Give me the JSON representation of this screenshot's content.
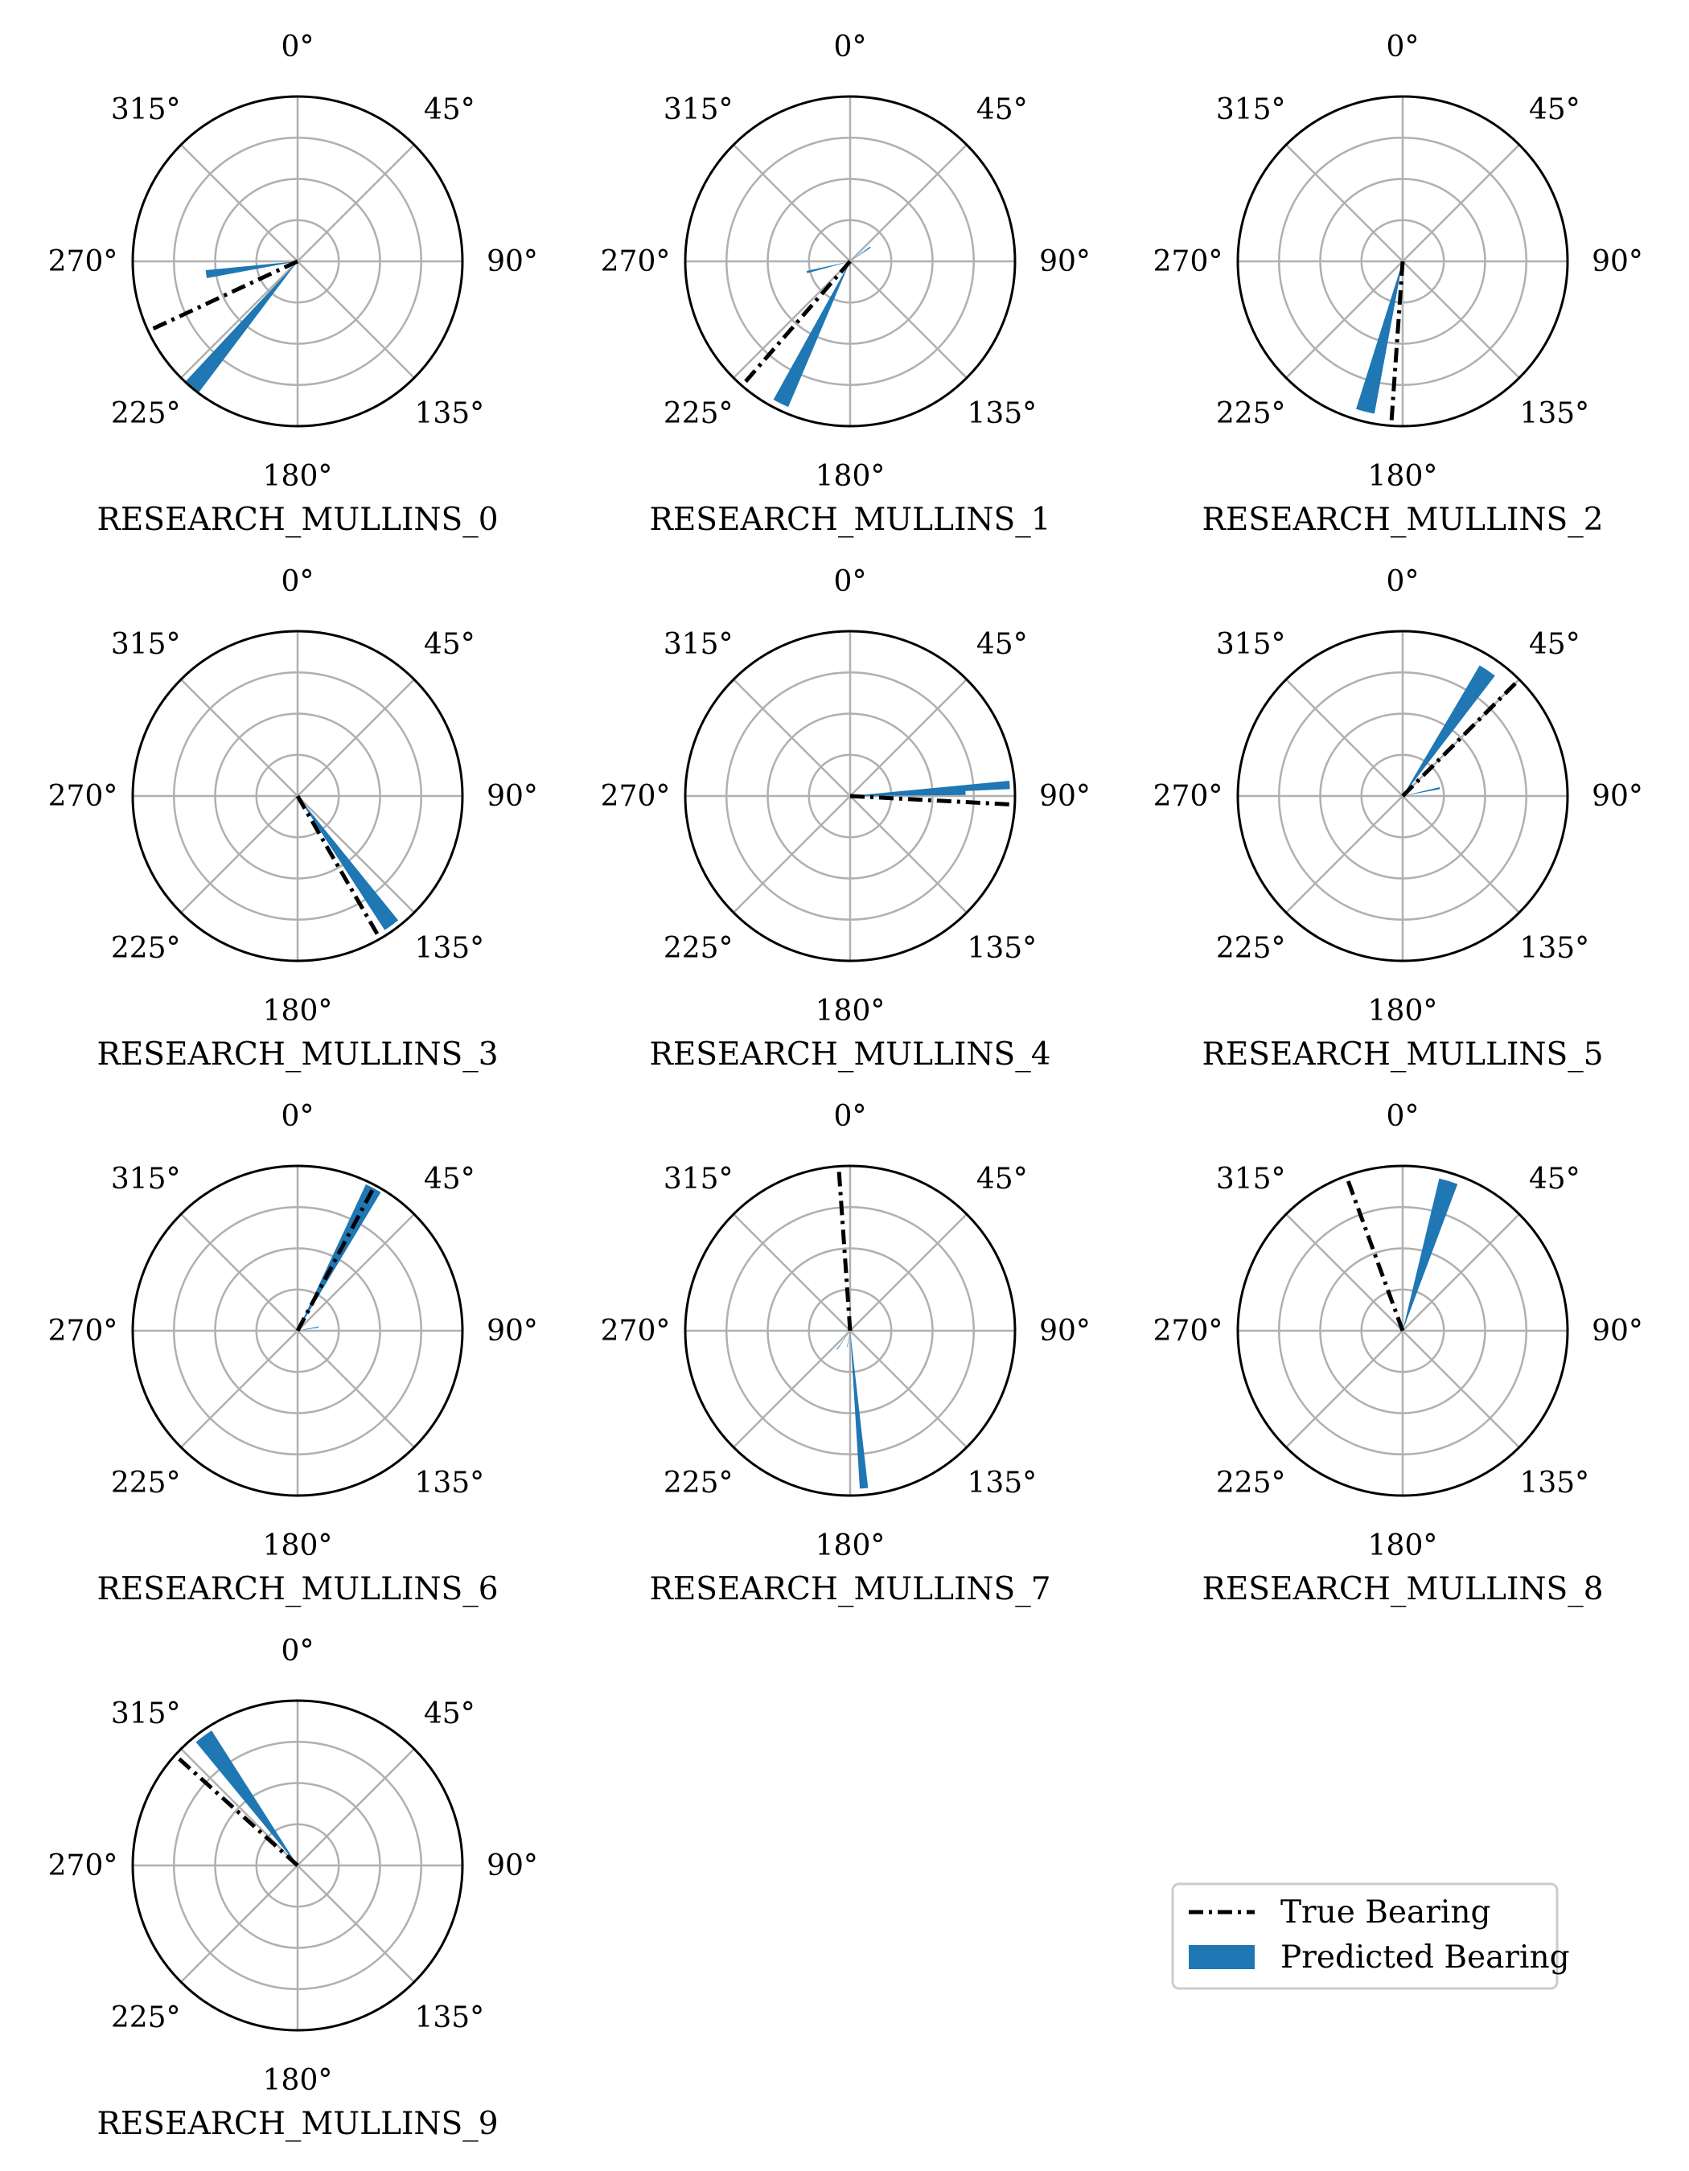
{
  "colors": {
    "predicted": "#1f77b4",
    "true_line": "#000000",
    "grid": "#b0b0b0",
    "frame": "#000000"
  },
  "legend": {
    "placement": "lower-right",
    "items": [
      {
        "label": "True Bearing",
        "style": "dash-dot-line"
      },
      {
        "label": "Predicted Bearing",
        "style": "filled-patch"
      }
    ]
  },
  "chart_data": [
    {
      "type": "polar",
      "title": "RESEARCH_MULLINS_0",
      "theta_labels": [
        "0°",
        "45°",
        "90°",
        "135°",
        "180°",
        "225°",
        "270°",
        "315°"
      ],
      "theta_zero": "N",
      "theta_direction": "clockwise",
      "grid": true,
      "true_bearing": 245,
      "predicted_bars": [
        {
          "theta": 220,
          "r": 1.0,
          "width": 6
        },
        {
          "theta": 262,
          "r": 0.56,
          "width": 5
        }
      ]
    },
    {
      "type": "polar",
      "title": "RESEARCH_MULLINS_1",
      "theta_labels": [
        "0°",
        "45°",
        "90°",
        "135°",
        "180°",
        "225°",
        "270°",
        "315°"
      ],
      "theta_zero": "N",
      "theta_direction": "clockwise",
      "grid": true,
      "true_bearing": 221,
      "predicted_bars": [
        {
          "theta": 206,
          "r": 0.96,
          "width": 6
        },
        {
          "theta": 256,
          "r": 0.27,
          "width": 3
        },
        {
          "theta": 55,
          "r": 0.15,
          "width": 3
        }
      ]
    },
    {
      "type": "polar",
      "title": "RESEARCH_MULLINS_2",
      "theta_labels": [
        "0°",
        "45°",
        "90°",
        "135°",
        "180°",
        "225°",
        "270°",
        "315°"
      ],
      "theta_zero": "N",
      "theta_direction": "clockwise",
      "grid": true,
      "true_bearing": 184,
      "predicted_bars": [
        {
          "theta": 194,
          "r": 0.94,
          "width": 7
        }
      ]
    },
    {
      "type": "polar",
      "title": "RESEARCH_MULLINS_3",
      "theta_labels": [
        "0°",
        "45°",
        "90°",
        "135°",
        "180°",
        "225°",
        "270°",
        "315°"
      ],
      "theta_zero": "N",
      "theta_direction": "clockwise",
      "grid": true,
      "true_bearing": 150,
      "predicted_bars": [
        {
          "theta": 144,
          "r": 0.97,
          "width": 6
        }
      ]
    },
    {
      "type": "polar",
      "title": "RESEARCH_MULLINS_4",
      "theta_labels": [
        "0°",
        "45°",
        "90°",
        "135°",
        "180°",
        "225°",
        "270°",
        "315°"
      ],
      "theta_zero": "N",
      "theta_direction": "clockwise",
      "grid": true,
      "true_bearing": 93,
      "predicted_bars": [
        {
          "theta": 86,
          "r": 0.97,
          "width": 3
        },
        {
          "theta": 88,
          "r": 0.7,
          "width": 3
        }
      ]
    },
    {
      "type": "polar",
      "title": "RESEARCH_MULLINS_5",
      "theta_labels": [
        "0°",
        "45°",
        "90°",
        "135°",
        "180°",
        "225°",
        "270°",
        "315°"
      ],
      "theta_zero": "N",
      "theta_direction": "clockwise",
      "grid": true,
      "true_bearing": 45,
      "predicted_bars": [
        {
          "theta": 34,
          "r": 0.92,
          "width": 7
        },
        {
          "theta": 78,
          "r": 0.23,
          "width": 3
        }
      ]
    },
    {
      "type": "polar",
      "title": "RESEARCH_MULLINS_6",
      "theta_labels": [
        "0°",
        "45°",
        "90°",
        "135°",
        "180°",
        "225°",
        "270°",
        "315°"
      ],
      "theta_zero": "N",
      "theta_direction": "clockwise",
      "grid": true,
      "true_bearing": 28,
      "predicted_bars": [
        {
          "theta": 28,
          "r": 0.98,
          "width": 6
        },
        {
          "theta": 80,
          "r": 0.13,
          "width": 3
        }
      ]
    },
    {
      "type": "polar",
      "title": "RESEARCH_MULLINS_7",
      "theta_labels": [
        "0°",
        "45°",
        "90°",
        "135°",
        "180°",
        "225°",
        "270°",
        "315°"
      ],
      "theta_zero": "N",
      "theta_direction": "clockwise",
      "grid": true,
      "true_bearing": 356,
      "predicted_bars": [
        {
          "theta": 175,
          "r": 0.96,
          "width": 3
        },
        {
          "theta": 215,
          "r": 0.14,
          "width": 2
        },
        {
          "theta": 190,
          "r": 0.1,
          "width": 2
        }
      ]
    },
    {
      "type": "polar",
      "title": "RESEARCH_MULLINS_8",
      "theta_labels": [
        "0°",
        "45°",
        "90°",
        "135°",
        "180°",
        "225°",
        "270°",
        "315°"
      ],
      "theta_zero": "N",
      "theta_direction": "clockwise",
      "grid": true,
      "true_bearing": 340,
      "predicted_bars": [
        {
          "theta": 17,
          "r": 0.95,
          "width": 7
        }
      ]
    },
    {
      "type": "polar",
      "title": "RESEARCH_MULLINS_9",
      "theta_labels": [
        "0°",
        "45°",
        "90°",
        "135°",
        "180°",
        "225°",
        "270°",
        "315°"
      ],
      "theta_zero": "N",
      "theta_direction": "clockwise",
      "grid": true,
      "true_bearing": 312,
      "predicted_bars": [
        {
          "theta": 324,
          "r": 0.97,
          "width": 7
        }
      ]
    }
  ]
}
